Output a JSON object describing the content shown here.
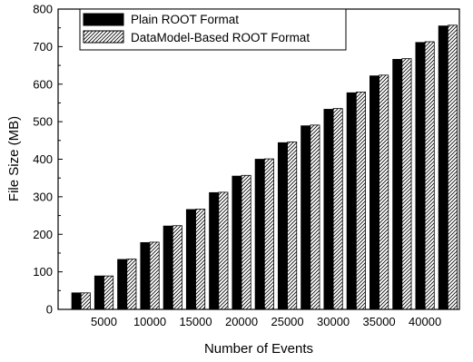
{
  "chart_data": {
    "type": "bar",
    "title": "",
    "xlabel": "Number of Events",
    "ylabel": "File Size (MB)",
    "ylim": [
      0,
      800
    ],
    "yticks": [
      0,
      100,
      200,
      300,
      400,
      500,
      600,
      700,
      800
    ],
    "x": [
      2500,
      5000,
      7500,
      10000,
      12500,
      15000,
      17500,
      20000,
      22500,
      25000,
      27500,
      30000,
      32500,
      35000,
      37500,
      40000,
      42500
    ],
    "xlim": [
      0,
      43750
    ],
    "xtick_labels": [
      "5000",
      "10000",
      "15000",
      "20000",
      "25000",
      "30000",
      "35000",
      "40000"
    ],
    "xtick_values": [
      5000,
      10000,
      15000,
      20000,
      25000,
      30000,
      35000,
      40000
    ],
    "legend_position": "top-left",
    "grid": false,
    "series": [
      {
        "name": "Plain ROOT Format",
        "color": "#000000",
        "pattern": "solid",
        "values": [
          44,
          89,
          133,
          178,
          222,
          266,
          311,
          355,
          400,
          444,
          489,
          533,
          577,
          622,
          666,
          711,
          755
        ]
      },
      {
        "name": "DataModel-Based ROOT Format",
        "color": "#ffffff",
        "pattern": "hatched",
        "values": [
          44,
          89,
          134,
          179,
          223,
          267,
          312,
          357,
          401,
          446,
          491,
          535,
          579,
          624,
          668,
          713,
          757
        ]
      }
    ]
  }
}
